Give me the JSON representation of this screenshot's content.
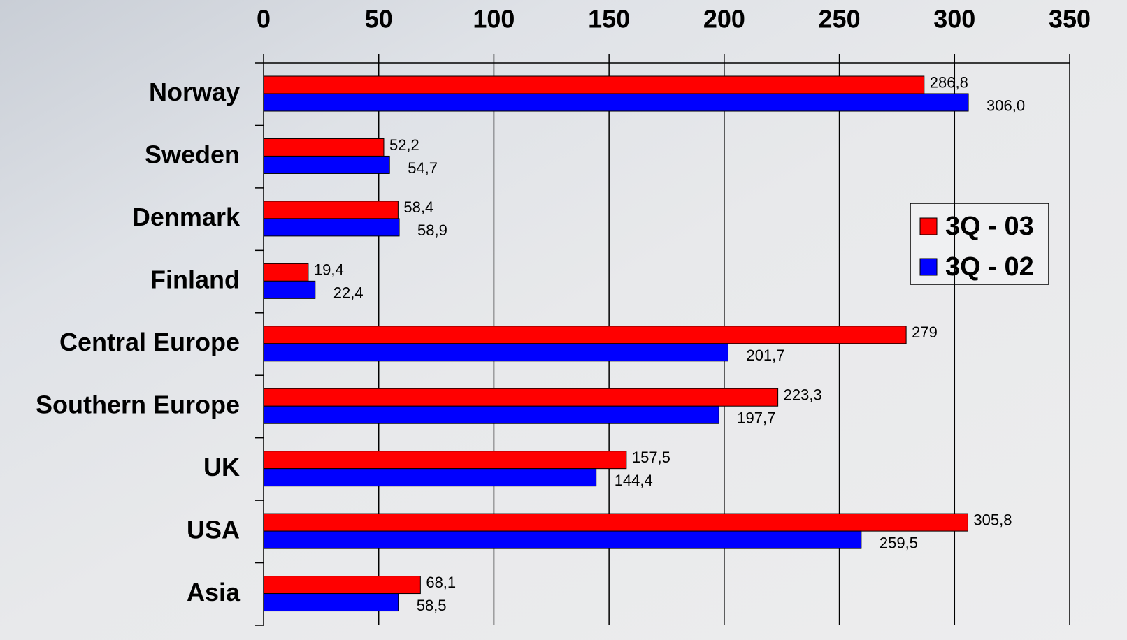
{
  "chart_data": {
    "type": "bar",
    "orientation": "horizontal",
    "categories": [
      "Norway",
      "Sweden",
      "Denmark",
      "Finland",
      "Central Europe",
      "Southern Europe",
      "UK",
      "USA",
      "Asia"
    ],
    "series": [
      {
        "name": "3Q - 03",
        "color": "#ff0000",
        "values": [
          286.8,
          52.2,
          58.4,
          19.4,
          279,
          223.3,
          157.5,
          305.8,
          68.1
        ],
        "value_labels": [
          "286,8",
          "52,2",
          "58,4",
          "19,4",
          "279",
          "223,3",
          "157,5",
          "305,8",
          "68,1"
        ]
      },
      {
        "name": "3Q - 02",
        "color": "#0000ff",
        "values": [
          306.0,
          54.7,
          58.9,
          22.4,
          201.7,
          197.7,
          144.4,
          259.5,
          58.5
        ],
        "value_labels": [
          "306,0",
          "54,7",
          "58,9",
          "22,4",
          "201,7",
          "197,7",
          "144,4",
          "259,5",
          "58,5"
        ]
      }
    ],
    "xlim": [
      0,
      350
    ],
    "xticks": [
      0,
      50,
      100,
      150,
      200,
      250,
      300,
      350
    ],
    "grid": true,
    "legend": "right"
  }
}
